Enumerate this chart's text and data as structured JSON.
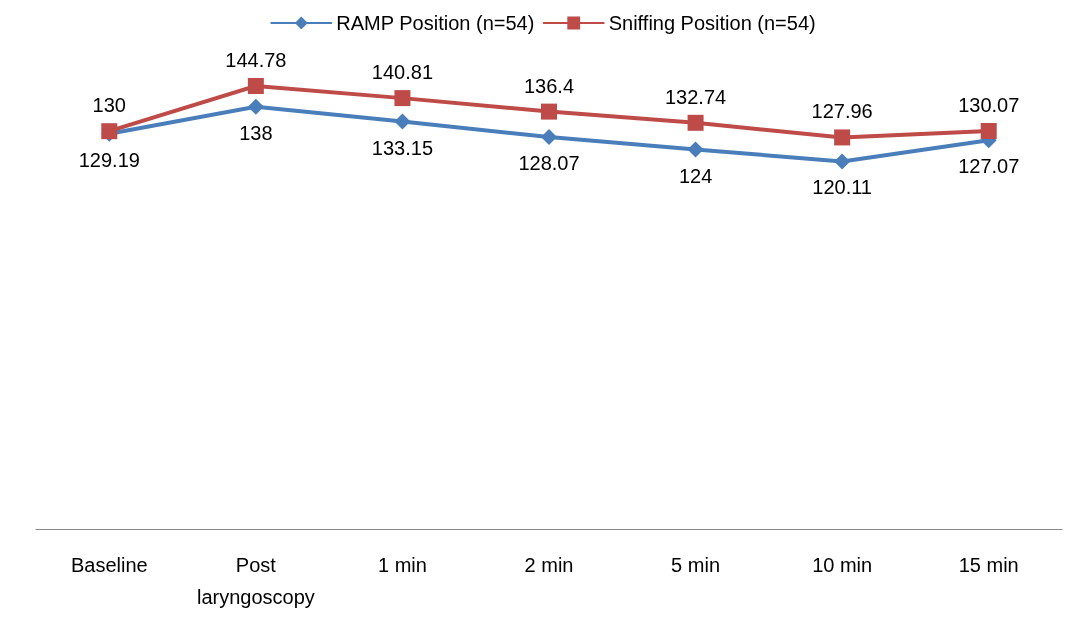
{
  "chart_data": {
    "type": "line",
    "categories": [
      "Baseline",
      "Post\nlaryngoscopy",
      "1 min",
      "2 min",
      "5 min",
      "10 min",
      "15 min"
    ],
    "series": [
      {
        "name": "RAMP Position (n=54)",
        "color": "#4a7ebb",
        "marker": "diamond",
        "values": [
          129.19,
          138,
          133.15,
          128.07,
          124,
          120.11,
          127.07
        ]
      },
      {
        "name": "Sniffing Position (n=54)",
        "color": "#be4b48",
        "marker": "square",
        "values": [
          130,
          144.78,
          140.81,
          136.4,
          132.74,
          127.96,
          130.07
        ]
      }
    ],
    "data_labels": true,
    "legend": "top",
    "grid": false,
    "line_style": "solid",
    "tick_labels": "x"
  }
}
